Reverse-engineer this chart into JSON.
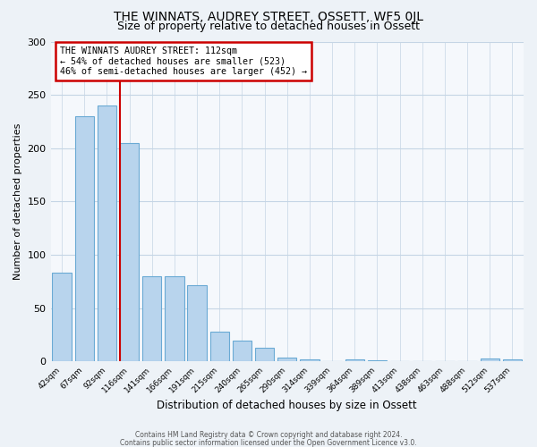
{
  "title": "THE WINNATS, AUDREY STREET, OSSETT, WF5 0JL",
  "subtitle": "Size of property relative to detached houses in Ossett",
  "xlabel": "Distribution of detached houses by size in Ossett",
  "ylabel": "Number of detached properties",
  "categories": [
    "42sqm",
    "67sqm",
    "92sqm",
    "116sqm",
    "141sqm",
    "166sqm",
    "191sqm",
    "215sqm",
    "240sqm",
    "265sqm",
    "290sqm",
    "314sqm",
    "339sqm",
    "364sqm",
    "389sqm",
    "413sqm",
    "438sqm",
    "463sqm",
    "488sqm",
    "512sqm",
    "537sqm"
  ],
  "values": [
    83,
    230,
    240,
    205,
    80,
    80,
    72,
    28,
    20,
    13,
    4,
    2,
    0,
    2,
    1,
    0,
    0,
    0,
    0,
    3,
    2
  ],
  "bar_color": "#b8d4ed",
  "bar_edge_color": "#6aaad4",
  "annotation_line1": "THE WINNATS AUDREY STREET: 112sqm",
  "annotation_line2": "← 54% of detached houses are smaller (523)",
  "annotation_line3": "46% of semi-detached houses are larger (452) →",
  "annotation_box_color": "#ffffff",
  "annotation_border_color": "#cc0000",
  "vline_color": "#cc0000",
  "ylim": [
    0,
    300
  ],
  "yticks": [
    0,
    50,
    100,
    150,
    200,
    250,
    300
  ],
  "footer1": "Contains HM Land Registry data © Crown copyright and database right 2024.",
  "footer2": "Contains public sector information licensed under the Open Government Licence v3.0.",
  "bg_color": "#edf2f7",
  "plot_bg_color": "#f5f8fc",
  "grid_color": "#c5d5e5",
  "title_fontsize": 10,
  "subtitle_fontsize": 9
}
